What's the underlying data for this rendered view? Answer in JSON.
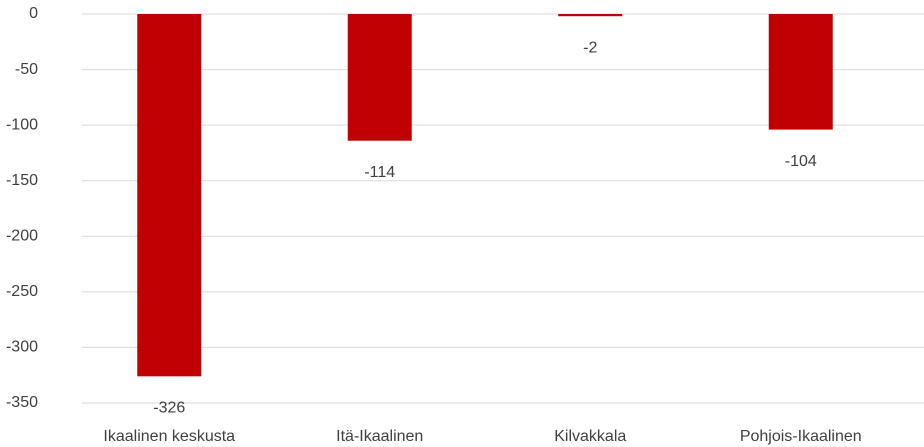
{
  "chart_data": {
    "type": "bar",
    "categories": [
      "Ikaalinen keskusta",
      "Itä-Ikaalinen",
      "Kilvakkala",
      "Pohjois-Ikaalinen"
    ],
    "values": [
      -326,
      -114,
      -2,
      -104
    ],
    "color": "#c00000",
    "ylim": [
      -350,
      0
    ],
    "yticks": [
      0,
      -50,
      -100,
      -150,
      -200,
      -250,
      -300,
      -350
    ],
    "grid": true
  }
}
